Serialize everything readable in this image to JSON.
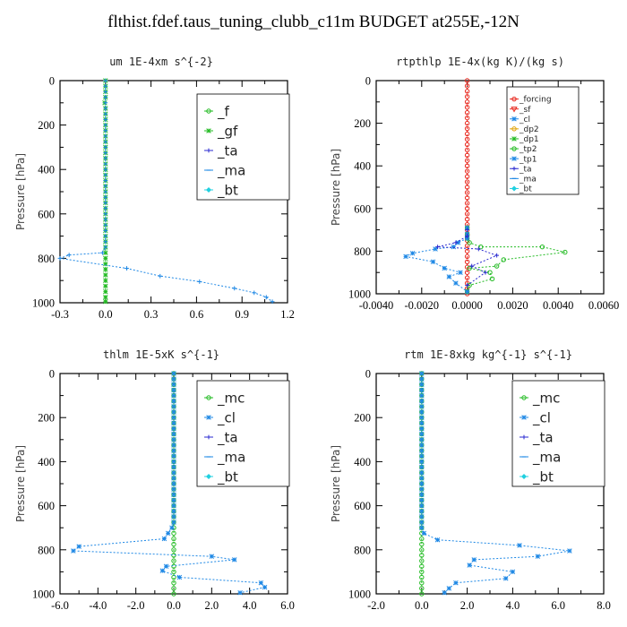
{
  "title": "flthist.fdef.taus_tuning_clubb_c11m  BUDGET at255E,-12N",
  "colors": {
    "green": "#22bb22",
    "blue": "#1e88e5",
    "dark": "#2a2ad0",
    "red": "#e8251b"
  },
  "chart_data": [
    {
      "type": "line",
      "title": "um  1E-4xm s^{-2}",
      "ylabel": "Pressure [hPa]",
      "xlim": [
        -0.3,
        1.2
      ],
      "ylim": [
        1000,
        0
      ],
      "xticks": [
        -0.3,
        0.0,
        0.3,
        0.6,
        0.9,
        1.2
      ],
      "xtick_labels": [
        "-0.3",
        "0.0",
        "0.3",
        "0.6",
        "0.9",
        "1.2"
      ],
      "yticks": [
        0,
        200,
        400,
        600,
        800,
        1000
      ],
      "ytick_labels": [
        "0",
        "200",
        "400",
        "600",
        "800",
        "1000"
      ],
      "legend": [
        "_f",
        "_gf",
        "_ta",
        "_ma",
        "_bt"
      ],
      "series": [
        {
          "name": "_gf",
          "color": "#22bb22",
          "x": [
            0,
            0,
            0,
            0,
            -0.005,
            0,
            0,
            0,
            0,
            0,
            0,
            0,
            0,
            0,
            0,
            0,
            0,
            0,
            0,
            0,
            0,
            0,
            0,
            0,
            0,
            0,
            0,
            0,
            0,
            0,
            0,
            0,
            0,
            0,
            0,
            0,
            0,
            0,
            0,
            0,
            0
          ],
          "y": [
            0,
            25,
            50,
            75,
            100,
            125,
            150,
            175,
            200,
            225,
            250,
            275,
            300,
            325,
            350,
            375,
            400,
            425,
            450,
            475,
            500,
            525,
            550,
            575,
            600,
            625,
            650,
            675,
            700,
            725,
            750,
            775,
            800,
            825,
            850,
            875,
            900,
            925,
            950,
            975,
            995
          ]
        },
        {
          "name": "_ta",
          "color": "#1e88e5",
          "x": [
            0,
            0,
            0,
            0,
            0,
            0,
            0,
            0,
            0,
            0,
            0,
            0,
            0,
            0,
            0,
            0,
            0,
            0,
            0,
            0,
            0,
            0,
            0,
            0,
            0,
            0,
            0,
            0,
            0,
            0,
            0,
            -0.02,
            -0.24,
            -0.3,
            0.14,
            0.36,
            0.62,
            0.85,
            0.98,
            1.06,
            1.1
          ],
          "y": [
            0,
            25,
            50,
            75,
            100,
            125,
            150,
            175,
            200,
            225,
            250,
            275,
            300,
            325,
            350,
            375,
            400,
            425,
            450,
            475,
            500,
            525,
            550,
            575,
            600,
            625,
            650,
            675,
            700,
            725,
            750,
            775,
            785,
            800,
            845,
            880,
            905,
            935,
            955,
            975,
            995
          ]
        }
      ]
    },
    {
      "type": "line",
      "title": "rtpthlp  1E-4x(kg K)/(kg s)",
      "ylabel": "Pressure [hPa]",
      "xlim": [
        -0.004,
        0.006
      ],
      "ylim": [
        1000,
        0
      ],
      "xticks": [
        -0.004,
        -0.002,
        0.0,
        0.002,
        0.004,
        0.006
      ],
      "xtick_labels": [
        "-0.0040",
        "-0.0020",
        "0.0000",
        "0.0020",
        "0.0040",
        "0.0060"
      ],
      "yticks": [
        0,
        200,
        400,
        600,
        800,
        1000
      ],
      "ytick_labels": [
        "0",
        "200",
        "400",
        "600",
        "800",
        "1000"
      ],
      "legend": [
        "_forcing",
        "_sf",
        "_cl",
        "_dp2",
        "_dp1",
        "_tp2",
        "_tp1",
        "_ta",
        "_ma",
        "_bt"
      ],
      "series": [
        {
          "name": "_forcing",
          "color": "#e8251b",
          "x": [
            0,
            0,
            0,
            0,
            0,
            0,
            0,
            0,
            0,
            0,
            0,
            0,
            0,
            0,
            0,
            0,
            0,
            0,
            0,
            0,
            0,
            0,
            0,
            0,
            0,
            0,
            0,
            0,
            0,
            0,
            0,
            0,
            0,
            0,
            0,
            0,
            0,
            0,
            0,
            0,
            0
          ],
          "y": [
            0,
            25,
            50,
            75,
            100,
            125,
            150,
            175,
            200,
            225,
            250,
            275,
            300,
            325,
            350,
            375,
            400,
            425,
            450,
            475,
            500,
            525,
            550,
            575,
            600,
            625,
            650,
            675,
            700,
            725,
            750,
            775,
            800,
            825,
            850,
            875,
            900,
            925,
            950,
            975,
            1000
          ]
        },
        {
          "name": "_tp2",
          "color": "#22bb22",
          "x": [
            0,
            0,
            0,
            0.0001,
            0.0006,
            0.0033,
            0.0043,
            0.0016,
            0.0013,
            0.0001,
            0.001,
            0.0011,
            0.0001,
            0
          ],
          "y": [
            690,
            720,
            740,
            760,
            780,
            780,
            805,
            840,
            870,
            880,
            900,
            930,
            960,
            990
          ]
        },
        {
          "name": "_tp1",
          "color": "#1e88e5",
          "x": [
            0,
            0,
            0,
            -0.0004,
            -0.0006,
            -0.0014,
            -0.0024,
            -0.0027,
            -0.0015,
            -0.001,
            -0.0003,
            -0.0008,
            -0.0005,
            0
          ],
          "y": [
            690,
            720,
            740,
            760,
            780,
            790,
            810,
            825,
            850,
            880,
            900,
            920,
            950,
            990
          ]
        },
        {
          "name": "_ta",
          "color": "#2a2ad0",
          "x": [
            0,
            0,
            -0.0005,
            -0.0013,
            0.0005,
            0.0013,
            0.0002,
            0.0008,
            0
          ],
          "y": [
            700,
            730,
            760,
            780,
            790,
            820,
            870,
            900,
            960
          ]
        }
      ]
    },
    {
      "type": "line",
      "title": "thlm  1E-5xK s^{-1}",
      "ylabel": "Pressure [hPa]",
      "xlim": [
        -6.0,
        6.0
      ],
      "ylim": [
        1000,
        0
      ],
      "xticks": [
        -6.0,
        -4.0,
        -2.0,
        0.0,
        2.0,
        4.0,
        6.0
      ],
      "xtick_labels": [
        "-6.0",
        "-4.0",
        "-2.0",
        "0.0",
        "2.0",
        "4.0",
        "6.0"
      ],
      "yticks": [
        0,
        200,
        400,
        600,
        800,
        1000
      ],
      "ytick_labels": [
        "0",
        "200",
        "400",
        "600",
        "800",
        "1000"
      ],
      "legend": [
        "_mc",
        "_cl",
        "_ta",
        "_ma",
        "_bt"
      ],
      "series": [
        {
          "name": "_mc",
          "color": "#22bb22",
          "x": [
            0,
            0,
            0,
            0,
            0,
            0,
            0,
            0,
            0,
            0,
            0,
            0,
            0,
            0,
            0,
            0,
            0,
            0,
            0,
            0,
            0,
            0,
            0,
            0,
            0,
            0,
            0,
            0,
            0,
            0,
            0,
            0,
            0,
            0,
            0,
            0,
            0,
            0,
            0,
            0,
            0
          ],
          "y": [
            0,
            25,
            50,
            75,
            100,
            125,
            150,
            175,
            200,
            225,
            250,
            275,
            300,
            325,
            350,
            375,
            400,
            425,
            450,
            475,
            500,
            525,
            550,
            575,
            600,
            625,
            650,
            675,
            700,
            725,
            750,
            775,
            800,
            825,
            850,
            875,
            900,
            925,
            950,
            975,
            1000
          ]
        },
        {
          "name": "_cl",
          "color": "#1e88e5",
          "x": [
            0,
            0,
            0,
            0,
            0,
            0,
            0,
            0,
            0,
            0,
            0,
            0,
            0,
            0,
            0,
            0,
            0,
            0,
            0,
            0,
            0,
            0,
            0,
            0,
            0,
            0,
            0,
            0,
            -0.1,
            -0.3,
            -0.5,
            -5.0,
            -5.3,
            2.0,
            3.2,
            -0.4,
            -0.6,
            0.3,
            4.6,
            4.8,
            3.5
          ],
          "y": [
            0,
            25,
            50,
            75,
            100,
            125,
            150,
            175,
            200,
            225,
            250,
            275,
            300,
            325,
            350,
            375,
            400,
            425,
            450,
            475,
            500,
            525,
            550,
            575,
            600,
            625,
            650,
            675,
            700,
            725,
            750,
            785,
            805,
            830,
            845,
            875,
            895,
            925,
            950,
            970,
            995
          ]
        }
      ]
    },
    {
      "type": "line",
      "title": "rtm  1E-8xkg kg^{-1} s^{-1}",
      "ylabel": "Pressure [hPa]",
      "xlim": [
        -2.0,
        8.0
      ],
      "ylim": [
        1000,
        0
      ],
      "xticks": [
        -2.0,
        0.0,
        2.0,
        4.0,
        6.0,
        8.0
      ],
      "xtick_labels": [
        "-2.0",
        "0.0",
        "2.0",
        "4.0",
        "6.0",
        "8.0"
      ],
      "yticks": [
        0,
        200,
        400,
        600,
        800,
        1000
      ],
      "ytick_labels": [
        "0",
        "200",
        "400",
        "600",
        "800",
        "1000"
      ],
      "legend": [
        "_mc",
        "_cl",
        "_ta",
        "_ma",
        "_bt"
      ],
      "series": [
        {
          "name": "_mc",
          "color": "#22bb22",
          "x": [
            0,
            0,
            0,
            0,
            0,
            0,
            0,
            0,
            0,
            0,
            0,
            0,
            0,
            0,
            0,
            0,
            0,
            0,
            0,
            0,
            0,
            0,
            0,
            0,
            0,
            0,
            0,
            0,
            0,
            0,
            0,
            0,
            0,
            0,
            0,
            0,
            0,
            0,
            0,
            0,
            0
          ],
          "y": [
            0,
            25,
            50,
            75,
            100,
            125,
            150,
            175,
            200,
            225,
            250,
            275,
            300,
            325,
            350,
            375,
            400,
            425,
            450,
            475,
            500,
            525,
            550,
            575,
            600,
            625,
            650,
            675,
            700,
            725,
            750,
            775,
            800,
            825,
            850,
            875,
            900,
            925,
            950,
            975,
            1000
          ]
        },
        {
          "name": "_cl",
          "color": "#1e88e5",
          "x": [
            0,
            0,
            0,
            0,
            0,
            0,
            0,
            0,
            0,
            0,
            0,
            0,
            0,
            0,
            0,
            0,
            0,
            0,
            0,
            0,
            0,
            0,
            0,
            0,
            0,
            0,
            0,
            0,
            0,
            0.1,
            0.7,
            4.3,
            6.5,
            5.1,
            2.3,
            2.1,
            4.0,
            3.7,
            1.5,
            1.2,
            1.0
          ],
          "y": [
            0,
            25,
            50,
            75,
            100,
            125,
            150,
            175,
            200,
            225,
            250,
            275,
            300,
            325,
            350,
            375,
            400,
            425,
            450,
            475,
            500,
            525,
            550,
            575,
            600,
            625,
            650,
            675,
            700,
            725,
            755,
            780,
            805,
            830,
            845,
            870,
            900,
            930,
            950,
            975,
            995
          ]
        }
      ]
    }
  ]
}
